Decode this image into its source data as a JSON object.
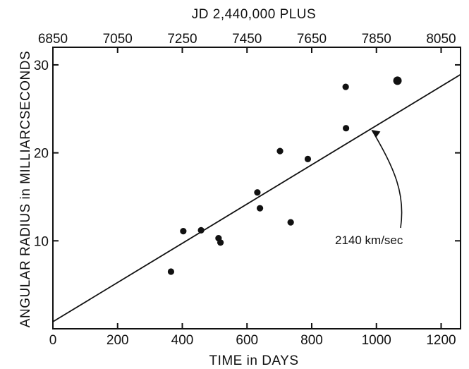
{
  "chart_data": {
    "type": "scatter",
    "xlabel": "TIME in DAYS",
    "ylabel": "ANGULAR RADIUS in MILLIARCSECONDS",
    "top_xlabel": "JD 2,440,000 PLUS",
    "xlim": [
      0,
      1260
    ],
    "ylim": [
      0,
      32
    ],
    "x_ticks": [
      0,
      200,
      400,
      600,
      800,
      1000,
      1200
    ],
    "y_ticks": [
      10,
      20,
      30
    ],
    "top_ticks": [
      6850,
      7050,
      7250,
      7450,
      7650,
      7850,
      8050
    ],
    "top_tick_positions": [
      0,
      200,
      400,
      600,
      800,
      1000,
      1200
    ],
    "grid": false,
    "series": [
      {
        "type": "scatter",
        "x": [
          365,
          403,
          458,
          512,
          518,
          632,
          640,
          702,
          735,
          788,
          905,
          906,
          1065
        ],
        "y": [
          6.5,
          11.1,
          11.2,
          10.3,
          9.8,
          15.5,
          13.7,
          20.2,
          12.1,
          19.3,
          27.5,
          22.8,
          28.2
        ]
      },
      {
        "type": "line",
        "x": [
          0,
          1260
        ],
        "y": [
          0.8,
          28.9
        ]
      }
    ],
    "annotations": [
      {
        "text": "2140 km/sec",
        "x": 980,
        "y": 22.8
      }
    ]
  }
}
